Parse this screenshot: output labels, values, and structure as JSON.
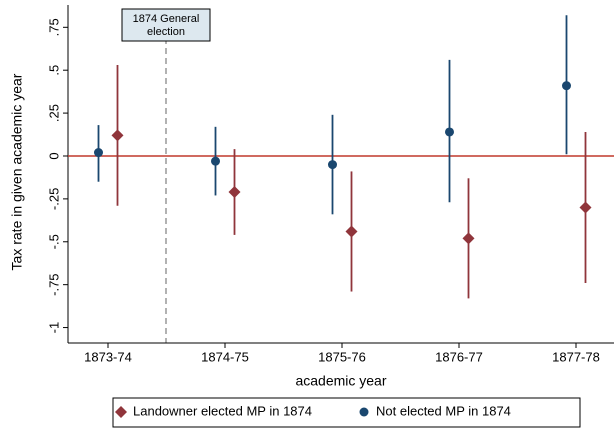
{
  "chart_data": {
    "type": "errorbar",
    "x_label": "academic year",
    "y_label": "Tax rate in given academic year",
    "categories": [
      "1873-74",
      "1874-75",
      "1875-76",
      "1876-77",
      "1877-78"
    ],
    "series": [
      {
        "name": "Landowner elected MP in 1874",
        "color": "#90353b",
        "marker": "diamond",
        "values": [
          0.12,
          -0.21,
          -0.44,
          -0.48,
          -0.3
        ],
        "lower": [
          -0.29,
          -0.46,
          -0.79,
          -0.83,
          -0.74
        ],
        "upper": [
          0.53,
          0.04,
          -0.09,
          -0.13,
          0.14
        ]
      },
      {
        "name": "Not elected MP in 1874",
        "color": "#1a476f",
        "marker": "circle",
        "values": [
          0.02,
          -0.03,
          -0.05,
          0.14,
          0.41
        ],
        "lower": [
          -0.15,
          -0.23,
          -0.34,
          -0.27,
          0.01
        ],
        "upper": [
          0.18,
          0.17,
          0.24,
          0.56,
          0.82
        ]
      }
    ],
    "ylim": [
      -1.09,
      0.88
    ],
    "yticks": [
      {
        "value": 0.75,
        "label": ".75"
      },
      {
        "value": 0.5,
        "label": ".5"
      },
      {
        "value": 0.25,
        "label": ".25"
      },
      0,
      {
        "value": -0.25,
        "label": "-.25"
      },
      {
        "value": -0.5,
        "label": "-.5"
      },
      {
        "value": -0.75,
        "label": "-.75"
      },
      -1
    ],
    "hline": 0,
    "hline_color": "#c0392b",
    "annotation": [
      "1874 General",
      "election"
    ],
    "legend": "bottom"
  }
}
